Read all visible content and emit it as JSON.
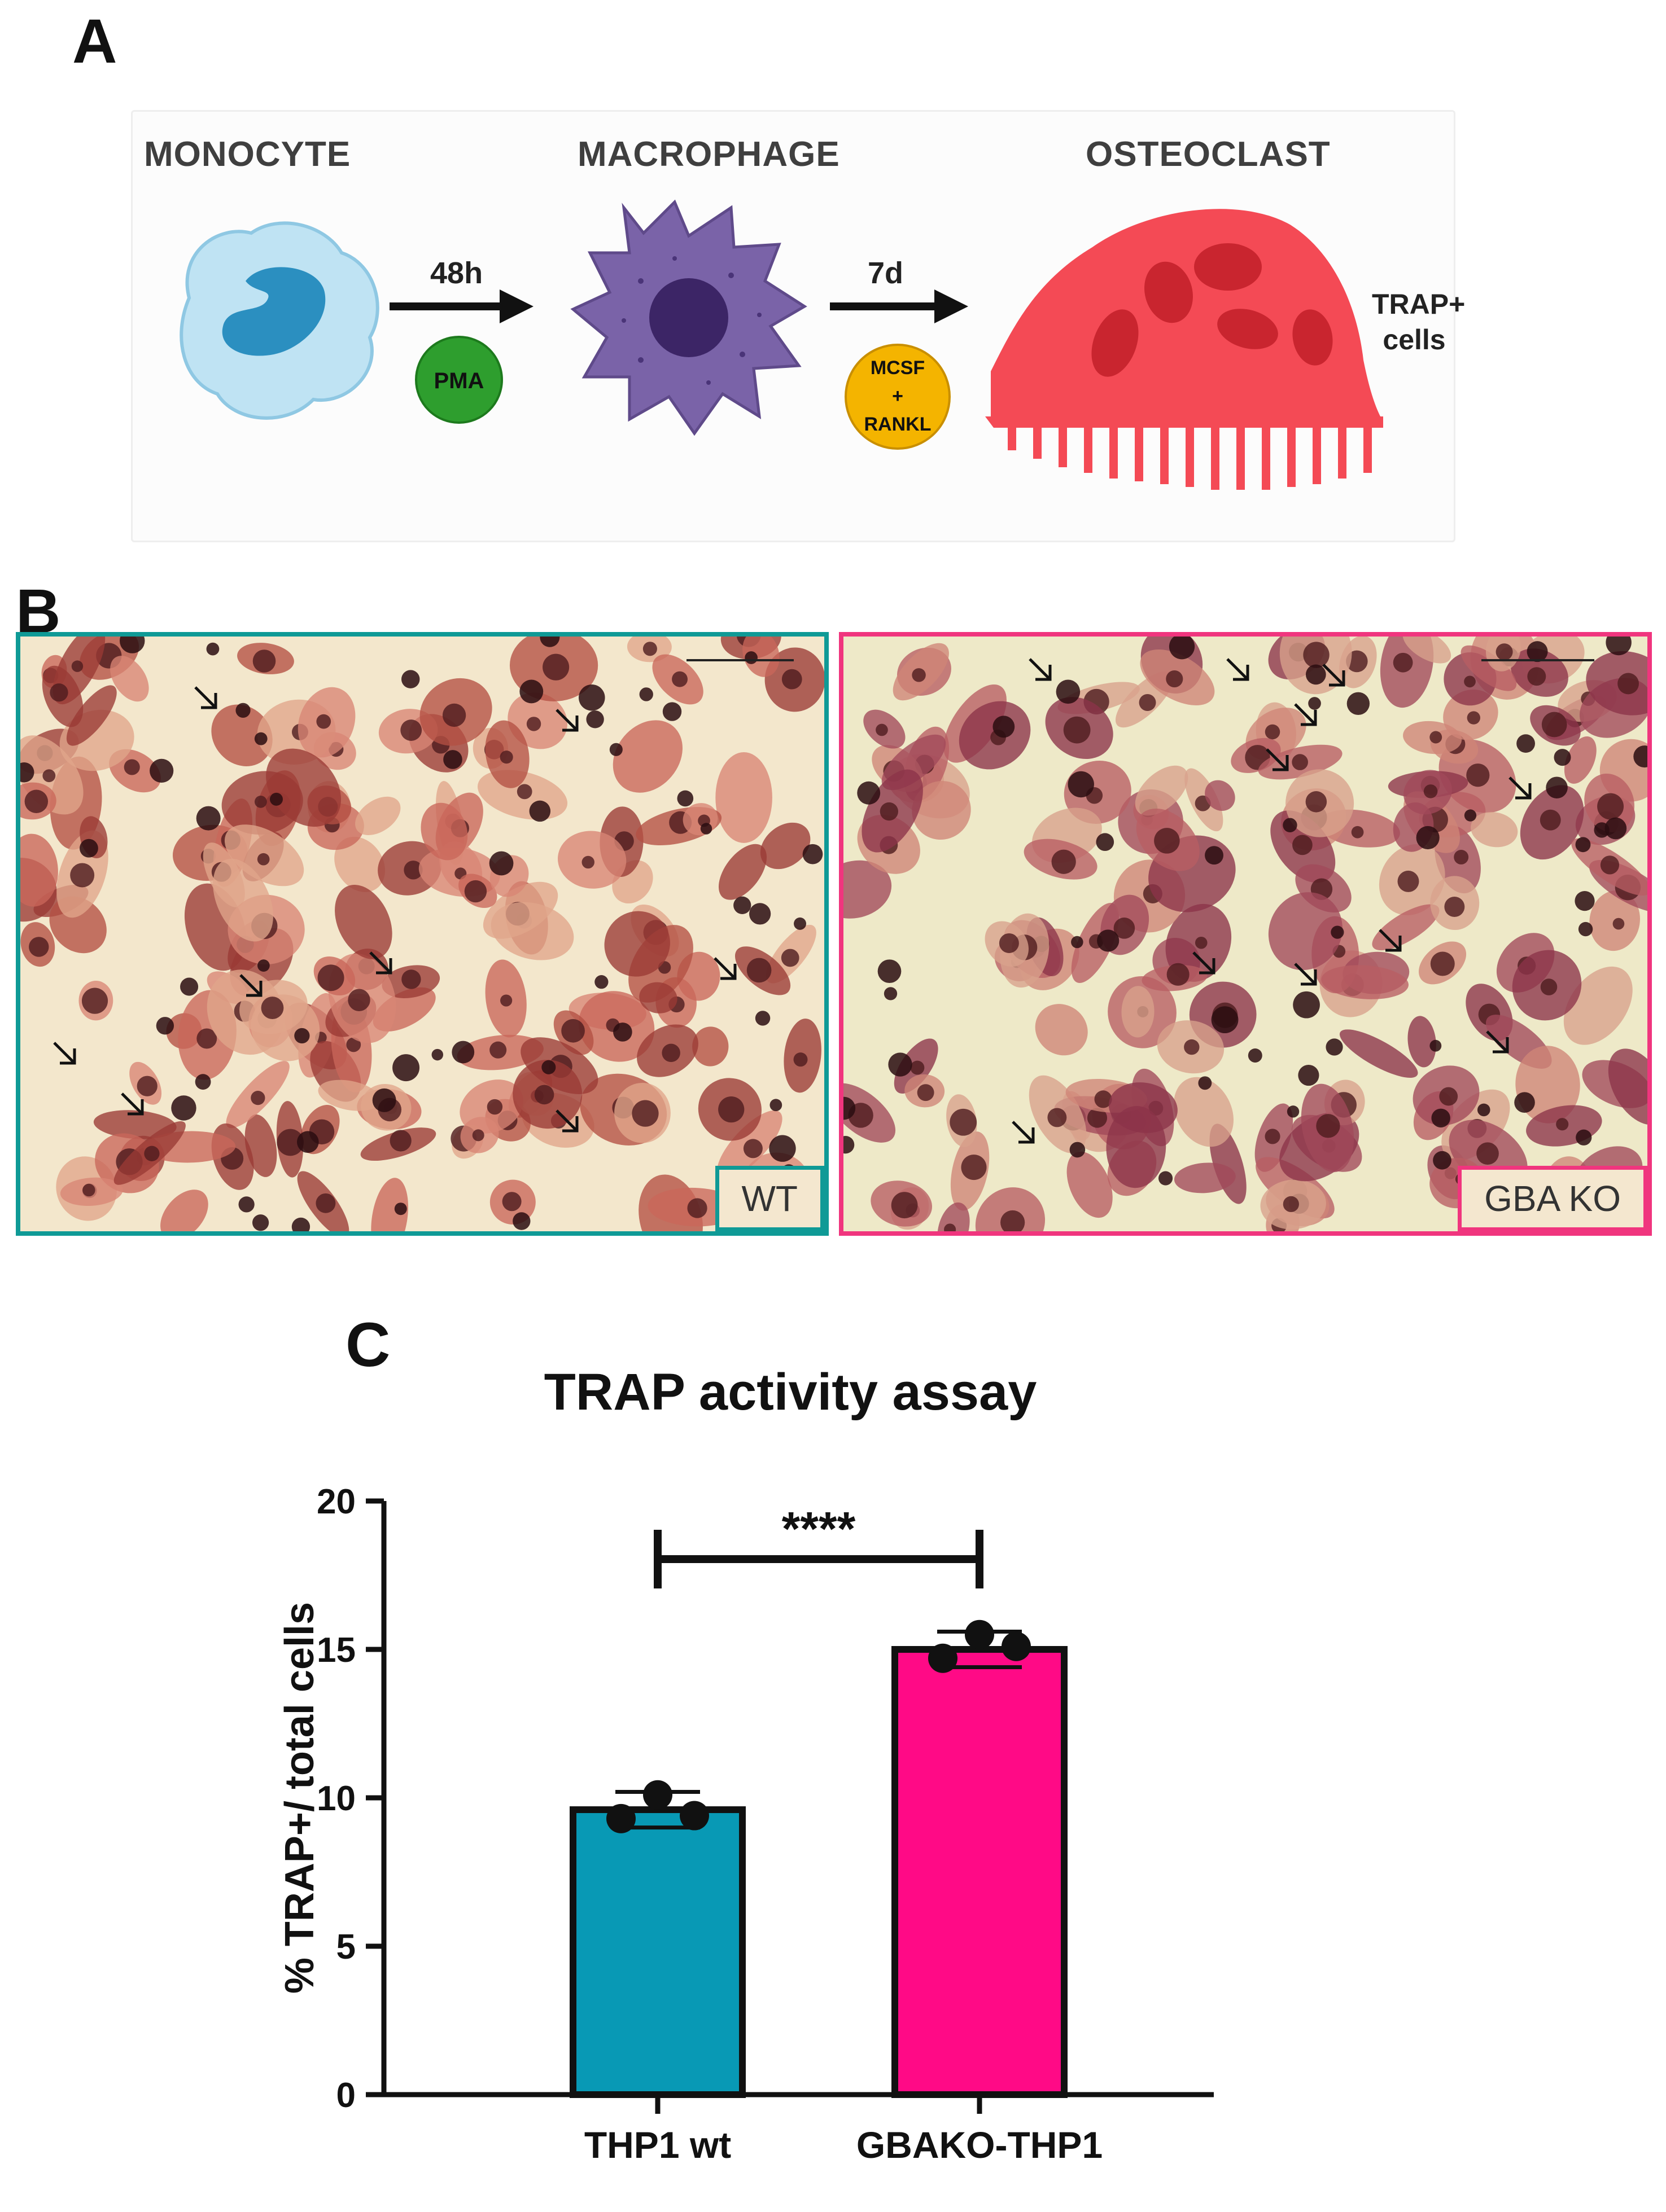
{
  "panels": {
    "a": "A",
    "b": "B",
    "c": "C"
  },
  "schema": {
    "stages": [
      "MONOCYTE",
      "MACROPHAGE",
      "OSTEOCLAST"
    ],
    "step1": {
      "time": "48h",
      "treatment": "PMA"
    },
    "step2": {
      "time": "7d",
      "treatment_lines": [
        "MCSF",
        "+",
        "RANKL"
      ]
    },
    "outcome_lines": [
      "TRAP+",
      "cells"
    ],
    "colors": {
      "monocyte": "#bfe3f3",
      "nucleus": "#2b8fc0",
      "macrophage": "#7a63a8",
      "osteoclast": "#f44a55",
      "pma": "#2e9e2e",
      "mcsf": "#f4b400"
    }
  },
  "micrographs": [
    {
      "label": "WT",
      "border_color": "#0f9a96"
    },
    {
      "label": "GBA KO",
      "border_color": "#f0357e"
    }
  ],
  "chart_data": {
    "type": "bar",
    "title": "TRAP activity assay",
    "ylabel": "% TRAP+/ total cells",
    "xlabel": "",
    "categories": [
      "THP1 wt",
      "GBAKO-THP1"
    ],
    "values": [
      9.6,
      15.0
    ],
    "error": [
      0.6,
      0.6
    ],
    "points": [
      [
        9.3,
        10.1,
        9.4
      ],
      [
        14.7,
        15.5,
        15.1
      ]
    ],
    "colors": [
      "#0899b5",
      "#ff0a86"
    ],
    "ylim": [
      0,
      20
    ],
    "yticks": [
      0,
      5,
      10,
      15,
      20
    ],
    "significance": "****"
  }
}
